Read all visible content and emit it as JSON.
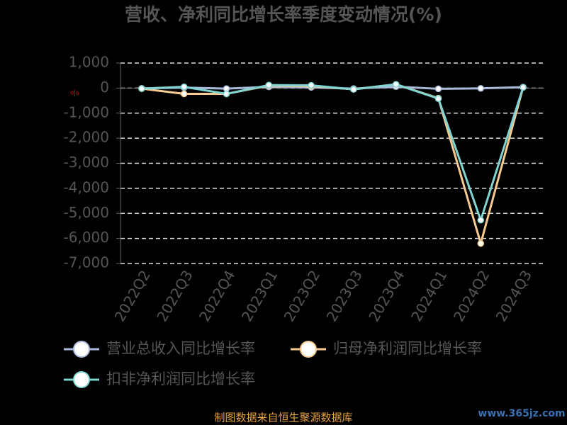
{
  "chart_data": {
    "type": "line",
    "title": "营收、净利同比增长率季度变动情况(%)",
    "y_label": "%",
    "categories": [
      "2022Q2",
      "2022Q3",
      "2022Q4",
      "2023Q1",
      "2023Q2",
      "2023Q3",
      "2023Q4",
      "2024Q1",
      "2024Q2",
      "2024Q3"
    ],
    "series": [
      {
        "name": "营业总收入同比增长率",
        "color": "#a9b9d9",
        "values": [
          -10,
          20,
          -20,
          50,
          30,
          -20,
          60,
          -30,
          -10,
          40
        ]
      },
      {
        "name": "归母净利润同比增长率",
        "color": "#f7ca8f",
        "values": [
          -20,
          -230,
          -230,
          100,
          80,
          -50,
          150,
          -400,
          -6200,
          30
        ]
      },
      {
        "name": "扣非净利润同比增长率",
        "color": "#80d4d1",
        "values": [
          -20,
          50,
          -230,
          120,
          110,
          -50,
          150,
          -420,
          -5270,
          30
        ]
      }
    ],
    "ylim": [
      -7000,
      1000
    ],
    "yticks": [
      {
        "value": -7000,
        "label": "-7,000"
      },
      {
        "value": -6000,
        "label": "-6,000"
      },
      {
        "value": -5000,
        "label": "-5,000"
      },
      {
        "value": -4000,
        "label": "-4,000"
      },
      {
        "value": -3000,
        "label": "-3,000"
      },
      {
        "value": -2000,
        "label": "-2,000"
      },
      {
        "value": -1000,
        "label": "-1,000"
      },
      0,
      {
        "value": 1000,
        "label": "1,000"
      }
    ],
    "grid": true,
    "source": "制图数据来自恒生聚源数据库",
    "watermark": "www.365jz.com"
  }
}
